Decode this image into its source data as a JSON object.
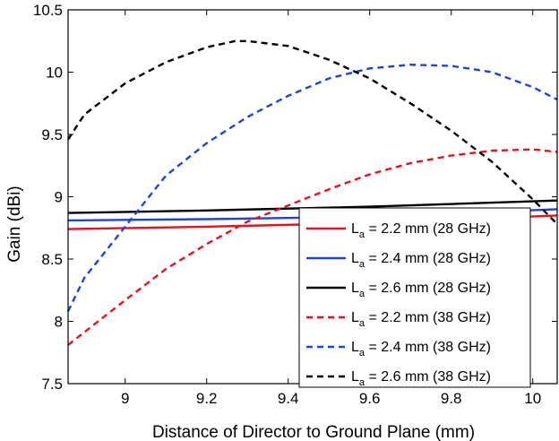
{
  "chart_data": {
    "type": "line",
    "title": "",
    "xlabel": "Distance of Director to Ground Plane (mm)",
    "ylabel": "Gain (dBi)",
    "xlim": [
      8.86,
      10.06
    ],
    "ylim": [
      7.5,
      10.5
    ],
    "xticks": [
      9,
      9.2,
      9.4,
      9.6,
      9.8,
      10
    ],
    "xtick_labels": [
      "9",
      "9.2",
      "9.4",
      "9.6",
      "9.8",
      "10"
    ],
    "yticks": [
      7.5,
      8,
      8.5,
      9,
      9.5,
      10,
      10.5
    ],
    "ytick_labels": [
      "7.5",
      "8",
      "8.5",
      "9",
      "9.5",
      "10",
      "10.5"
    ],
    "legend_position": "bottom-right",
    "series": [
      {
        "name": "2.2 mm (28 GHz)",
        "symbol": "L",
        "subscript": "a",
        "prefix": " = ",
        "color": "#e8101c",
        "style": "solid",
        "x": [
          8.86,
          9.2,
          9.6,
          10.06
        ],
        "y": [
          8.74,
          8.76,
          8.79,
          8.85
        ]
      },
      {
        "name": "2.4 mm (28 GHz)",
        "symbol": "L",
        "subscript": "a",
        "prefix": " = ",
        "color": "#1a44e0",
        "style": "solid",
        "x": [
          8.86,
          9.2,
          9.6,
          10.06
        ],
        "y": [
          8.81,
          8.82,
          8.84,
          8.9
        ]
      },
      {
        "name": "2.6 mm (28 GHz)",
        "symbol": "L",
        "subscript": "a",
        "prefix": " = ",
        "color": "#000000",
        "style": "solid",
        "x": [
          8.86,
          9.2,
          9.6,
          10.06
        ],
        "y": [
          8.87,
          8.89,
          8.92,
          8.97
        ]
      },
      {
        "name": "2.2 mm (38 GHz)",
        "symbol": "L",
        "subscript": "a",
        "prefix": " = ",
        "color": "#e8101c",
        "style": "dashed",
        "x": [
          8.86,
          9.0,
          9.1,
          9.2,
          9.3,
          9.4,
          9.5,
          9.6,
          9.7,
          9.8,
          9.9,
          10.0,
          10.06
        ],
        "y": [
          7.81,
          8.17,
          8.42,
          8.62,
          8.8,
          8.93,
          9.06,
          9.18,
          9.27,
          9.33,
          9.37,
          9.38,
          9.36
        ]
      },
      {
        "name": "2.4 mm (38 GHz)",
        "symbol": "L",
        "subscript": "a",
        "prefix": " = ",
        "color": "#1a44e0",
        "style": "dashed",
        "x": [
          8.86,
          8.9,
          9.0,
          9.1,
          9.2,
          9.3,
          9.4,
          9.5,
          9.6,
          9.7,
          9.8,
          9.9,
          10.0,
          10.06
        ],
        "y": [
          8.08,
          8.35,
          8.76,
          9.17,
          9.43,
          9.64,
          9.81,
          9.95,
          10.03,
          10.06,
          10.05,
          10.0,
          9.88,
          9.78
        ]
      },
      {
        "name": "2.6 mm (38 GHz)",
        "symbol": "L",
        "subscript": "a",
        "prefix": " = ",
        "color": "#000000",
        "style": "dashed",
        "x": [
          8.86,
          8.9,
          9.0,
          9.1,
          9.2,
          9.27,
          9.3,
          9.4,
          9.5,
          9.6,
          9.7,
          9.8,
          9.9,
          10.0,
          10.06
        ],
        "y": [
          9.46,
          9.66,
          9.91,
          10.08,
          10.2,
          10.25,
          10.25,
          10.21,
          10.1,
          9.95,
          9.75,
          9.53,
          9.28,
          8.98,
          8.78
        ]
      }
    ]
  }
}
